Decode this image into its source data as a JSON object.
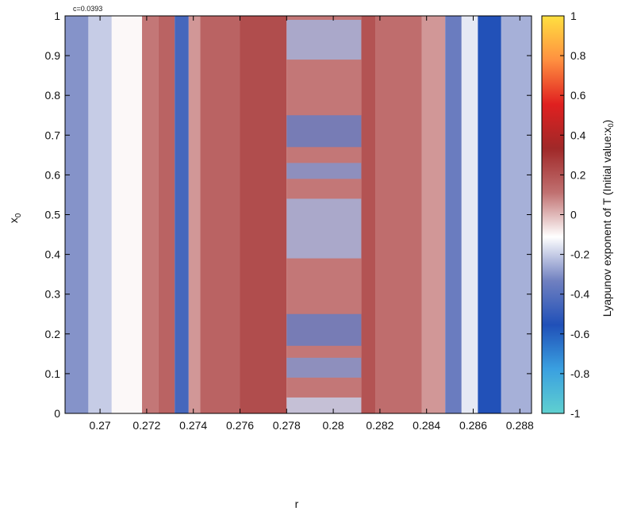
{
  "chart_data": {
    "type": "heatmap",
    "parameter_label": "c=0.0393",
    "xlabel": "r",
    "ylabel": "x",
    "ylabel_sub": "0",
    "colorbar_label": "Lyapunov exponent of T (Initial value:x",
    "colorbar_label_sub": "0",
    "colorbar_label_end": ")",
    "xlim": [
      0.2685,
      0.2885
    ],
    "ylim": [
      0,
      1
    ],
    "clim": [
      -1,
      1
    ],
    "x_ticks": [
      "0.27",
      "0.272",
      "0.274",
      "0.276",
      "0.278",
      "0.28",
      "0.282",
      "0.284",
      "0.286",
      "0.288"
    ],
    "x_tick_values": [
      0.27,
      0.272,
      0.274,
      0.276,
      0.278,
      0.28,
      0.282,
      0.284,
      0.286,
      0.288
    ],
    "y_ticks": [
      "0",
      "0.1",
      "0.2",
      "0.3",
      "0.4",
      "0.5",
      "0.6",
      "0.7",
      "0.8",
      "0.9",
      "1"
    ],
    "y_tick_values": [
      0,
      0.1,
      0.2,
      0.3,
      0.4,
      0.5,
      0.6,
      0.7,
      0.8,
      0.9,
      1
    ],
    "colorbar_ticks": [
      "1",
      "0.8",
      "0.6",
      "0.4",
      "0.2",
      "0",
      "-0.2",
      "-0.4",
      "-0.6",
      "-0.8",
      "-1"
    ],
    "colorbar_tick_values": [
      1,
      0.8,
      0.6,
      0.4,
      0.2,
      0,
      -0.2,
      -0.4,
      -0.6,
      -0.8,
      -1
    ],
    "colormap": [
      "#5fd0d0",
      "#3aa0e0",
      "#2050b8",
      "#7080c0",
      "#ffffff",
      "#c07070",
      "#a02828",
      "#e02020",
      "#ff9040",
      "#ffe040"
    ],
    "bands": [
      {
        "r": [
          0.2685,
          0.2695
        ],
        "lyapunov": -0.3
      },
      {
        "r": [
          0.2695,
          0.2705
        ],
        "lyapunov": -0.2
      },
      {
        "r": [
          0.2705,
          0.271
        ],
        "lyapunov": -0.1
      },
      {
        "r": [
          0.271,
          0.2718
        ],
        "lyapunov": -0.1
      },
      {
        "r": [
          0.2718,
          0.2725
        ],
        "lyapunov": 0.1
      },
      {
        "r": [
          0.2725,
          0.2732
        ],
        "lyapunov": 0.15
      },
      {
        "r": [
          0.2732,
          0.2738
        ],
        "lyapunov": -0.45
      },
      {
        "r": [
          0.2738,
          0.2743
        ],
        "lyapunov": 0.05
      },
      {
        "r": [
          0.2743,
          0.276
        ],
        "lyapunov": 0.15
      },
      {
        "r": [
          0.276,
          0.278
        ],
        "lyapunov": 0.22
      },
      {
        "r": [
          0.278,
          0.2812
        ],
        "lyapunov": 0.1
      },
      {
        "r": [
          0.2812,
          0.2818
        ],
        "lyapunov": 0.2
      },
      {
        "r": [
          0.2818,
          0.2838
        ],
        "lyapunov": 0.12
      },
      {
        "r": [
          0.2838,
          0.2848
        ],
        "lyapunov": 0.05
      },
      {
        "r": [
          0.2848,
          0.2855
        ],
        "lyapunov": -0.35
      },
      {
        "r": [
          0.2855,
          0.2862
        ],
        "lyapunov": -0.15
      },
      {
        "r": [
          0.2862,
          0.2872
        ],
        "lyapunov": -0.55
      },
      {
        "r": [
          0.2872,
          0.2885
        ],
        "lyapunov": -0.25
      }
    ],
    "windows": [
      {
        "r": [
          0.278,
          0.2812
        ],
        "x0": [
          0.0,
          0.04
        ],
        "lyapunov": -0.2
      },
      {
        "r": [
          0.278,
          0.2812
        ],
        "x0": [
          0.09,
          0.14
        ],
        "lyapunov": -0.3
      },
      {
        "r": [
          0.278,
          0.2812
        ],
        "x0": [
          0.17,
          0.25
        ],
        "lyapunov": -0.35
      },
      {
        "r": [
          0.278,
          0.2812
        ],
        "x0": [
          0.39,
          0.54
        ],
        "lyapunov": -0.25
      },
      {
        "r": [
          0.278,
          0.2812
        ],
        "x0": [
          0.59,
          0.63
        ],
        "lyapunov": -0.3
      },
      {
        "r": [
          0.278,
          0.2812
        ],
        "x0": [
          0.67,
          0.75
        ],
        "lyapunov": -0.35
      },
      {
        "r": [
          0.278,
          0.2812
        ],
        "x0": [
          0.89,
          0.99
        ],
        "lyapunov": -0.25
      }
    ]
  }
}
